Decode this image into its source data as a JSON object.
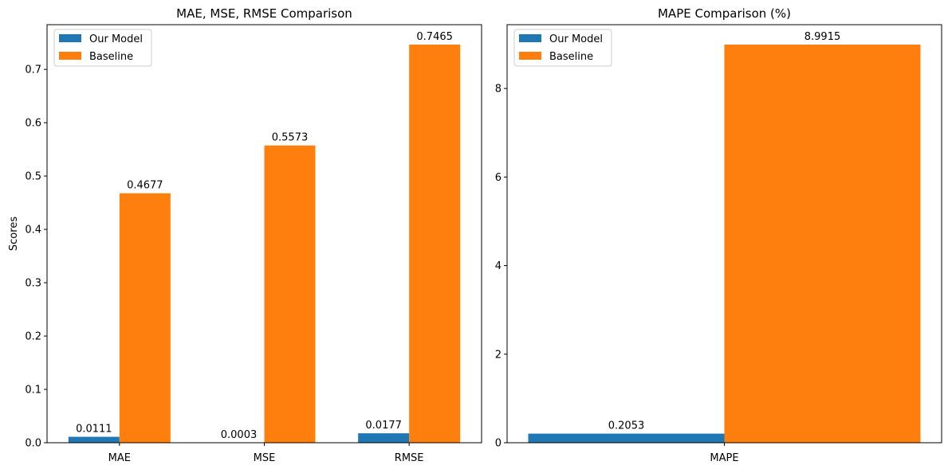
{
  "colors": {
    "our_model": "#1f77b4",
    "baseline": "#ff7f0e"
  },
  "chart_data": [
    {
      "type": "bar",
      "title": "MAE, MSE, RMSE Comparison",
      "xlabel": "",
      "ylabel": "Scores",
      "categories": [
        "MAE",
        "MSE",
        "RMSE"
      ],
      "series": [
        {
          "name": "Our Model",
          "values": [
            0.0111,
            0.0003,
            0.0177
          ],
          "labels": [
            "0.0111",
            "0.0003",
            "0.0177"
          ]
        },
        {
          "name": "Baseline",
          "values": [
            0.4677,
            0.5573,
            0.7465
          ],
          "labels": [
            "0.4677",
            "0.5573",
            "0.7465"
          ]
        }
      ],
      "ylim": [
        0,
        0.7838
      ],
      "yticks": [
        0.0,
        0.1,
        0.2,
        0.3,
        0.4,
        0.5,
        0.6,
        0.7
      ],
      "ytick_labels": [
        "0.0",
        "0.1",
        "0.2",
        "0.3",
        "0.4",
        "0.5",
        "0.6",
        "0.7"
      ],
      "legend": "top-left",
      "grid": false
    },
    {
      "type": "bar",
      "title": "MAPE Comparison (%)",
      "xlabel": "",
      "ylabel": "",
      "categories": [
        "MAPE"
      ],
      "series": [
        {
          "name": "Our Model",
          "values": [
            0.2053
          ],
          "labels": [
            "0.2053"
          ]
        },
        {
          "name": "Baseline",
          "values": [
            8.9915
          ],
          "labels": [
            "8.9915"
          ]
        }
      ],
      "ylim": [
        0,
        9.441
      ],
      "yticks": [
        0,
        2,
        4,
        6,
        8
      ],
      "ytick_labels": [
        "0",
        "2",
        "4",
        "6",
        "8"
      ],
      "legend": "top-left",
      "grid": false
    }
  ]
}
